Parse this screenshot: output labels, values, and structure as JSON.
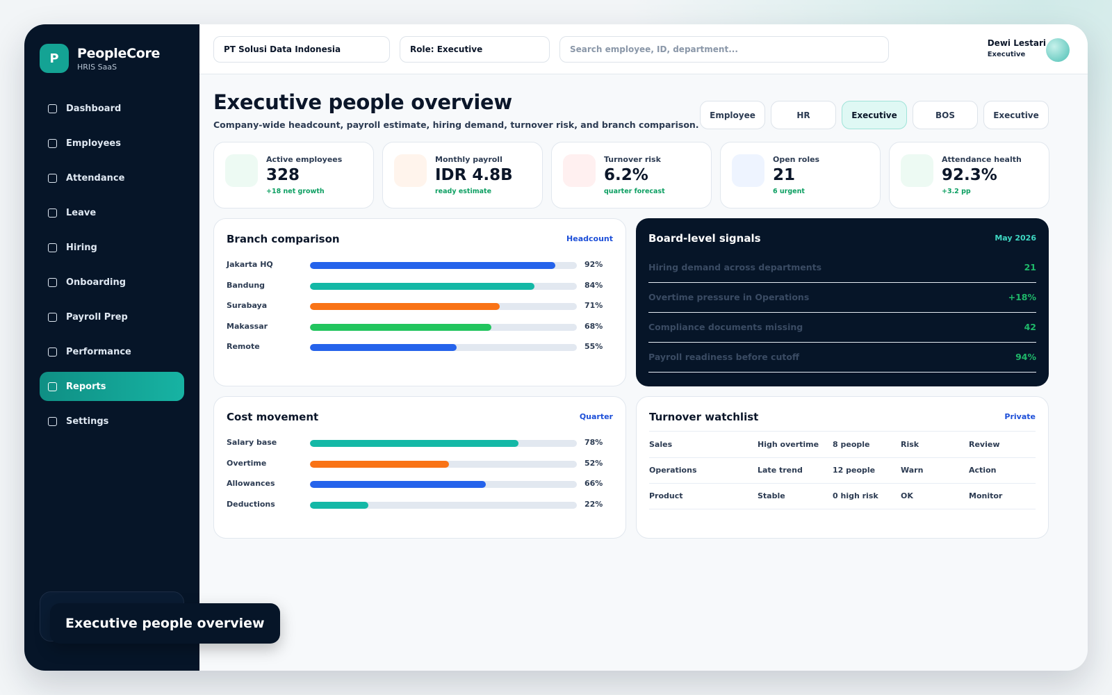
{
  "brand": {
    "logo_letter": "P",
    "name": "PeopleCore",
    "subtitle": "HRIS SaaS"
  },
  "sidebar": {
    "items": [
      {
        "label": "Dashboard",
        "active": false
      },
      {
        "label": "Employees",
        "active": false
      },
      {
        "label": "Attendance",
        "active": false
      },
      {
        "label": "Leave",
        "active": false
      },
      {
        "label": "Hiring",
        "active": false
      },
      {
        "label": "Onboarding",
        "active": false
      },
      {
        "label": "Payroll Prep",
        "active": false
      },
      {
        "label": "Performance",
        "active": false
      },
      {
        "label": "Reports",
        "active": true
      },
      {
        "label": "Settings",
        "active": false
      }
    ]
  },
  "toast": {
    "text": "Executive people overview"
  },
  "topbar": {
    "company": "PT Solusi Data Indonesia",
    "role": "Role: Executive",
    "search_placeholder": "Search employee, ID, department...",
    "user_name": "Dewi Lestari",
    "user_role": "Executive"
  },
  "page": {
    "title": "Executive people overview",
    "subtitle": "Company-wide headcount, payroll estimate, hiring demand, turnover risk, and branch comparison."
  },
  "role_tabs": [
    {
      "label": "Employee",
      "active": false
    },
    {
      "label": "HR",
      "active": false
    },
    {
      "label": "Executive",
      "active": true
    },
    {
      "label": "BOS",
      "active": false
    },
    {
      "label": "Executive",
      "active": false
    }
  ],
  "kpis": [
    {
      "label": "Active employees",
      "value": "328",
      "note": "+18 net growth",
      "tint": "#edfaf3"
    },
    {
      "label": "Monthly payroll",
      "value": "IDR 4.8B",
      "note": "ready estimate",
      "tint": "#fff4ec"
    },
    {
      "label": "Turnover risk",
      "value": "6.2%",
      "note": "quarter forecast",
      "tint": "#fff0f0"
    },
    {
      "label": "Open roles",
      "value": "21",
      "note": "6 urgent",
      "tint": "#eef4ff"
    },
    {
      "label": "Attendance health",
      "value": "92.3%",
      "note": "+3.2 pp",
      "tint": "#edfaf3"
    }
  ],
  "branch": {
    "title": "Branch comparison",
    "tag": "Headcount",
    "rows": [
      {
        "label": "Jakarta HQ",
        "value": 92,
        "pct": "92%",
        "color": "#2563eb"
      },
      {
        "label": "Bandung",
        "value": 84,
        "pct": "84%",
        "color": "#14b8a6"
      },
      {
        "label": "Surabaya",
        "value": 71,
        "pct": "71%",
        "color": "#f97316"
      },
      {
        "label": "Makassar",
        "value": 68,
        "pct": "68%",
        "color": "#22c55e"
      },
      {
        "label": "Remote",
        "value": 55,
        "pct": "55%",
        "color": "#2563eb"
      }
    ]
  },
  "signals": {
    "title": "Board-level signals",
    "tag": "May 2026",
    "rows": [
      {
        "label": "Hiring demand across departments",
        "value": "21"
      },
      {
        "label": "Overtime pressure in Operations",
        "value": "+18%"
      },
      {
        "label": "Compliance documents missing",
        "value": "42"
      },
      {
        "label": "Payroll readiness before cutoff",
        "value": "94%"
      }
    ]
  },
  "cost": {
    "title": "Cost movement",
    "tag": "Quarter",
    "rows": [
      {
        "label": "Salary base",
        "value": 78,
        "pct": "78%",
        "color": "#14b8a6"
      },
      {
        "label": "Overtime",
        "value": 52,
        "pct": "52%",
        "color": "#f97316"
      },
      {
        "label": "Allowances",
        "value": 66,
        "pct": "66%",
        "color": "#2563eb"
      },
      {
        "label": "Deductions",
        "value": 22,
        "pct": "22%",
        "color": "#14b8a6"
      }
    ]
  },
  "watchlist": {
    "title": "Turnover watchlist",
    "tag": "Private",
    "rows": [
      [
        "Sales",
        "High overtime",
        "8 people",
        "Risk",
        "Review"
      ],
      [
        "Operations",
        "Late trend",
        "12 people",
        "Warn",
        "Action"
      ],
      [
        "Product",
        "Stable",
        "0 high risk",
        "OK",
        "Monitor"
      ]
    ]
  }
}
